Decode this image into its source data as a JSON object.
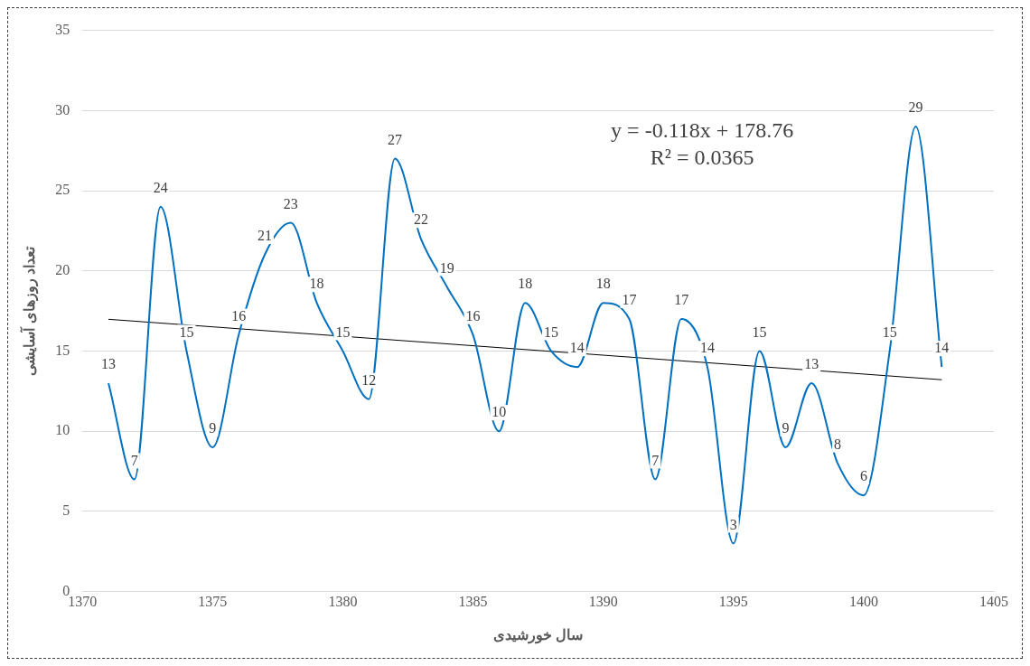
{
  "chart_data": {
    "type": "line",
    "xlabel": "سال خورشیدی",
    "ylabel": "تعداد روزهای آسایشی",
    "x": [
      1371,
      1372,
      1373,
      1374,
      1375,
      1376,
      1377,
      1378,
      1379,
      1380,
      1381,
      1382,
      1383,
      1384,
      1385,
      1386,
      1387,
      1388,
      1389,
      1390,
      1391,
      1392,
      1393,
      1394,
      1395,
      1396,
      1397,
      1398,
      1399,
      1400,
      1401,
      1402,
      1403
    ],
    "series": [
      {
        "type": "line",
        "color": "#0070c0",
        "values": [
          13,
          7,
          24,
          15,
          9,
          16,
          21,
          23,
          18,
          15,
          12,
          27,
          22,
          19,
          16,
          10,
          18,
          15,
          14,
          18,
          17,
          7,
          17,
          14,
          3,
          15,
          9,
          13,
          8,
          6,
          15,
          29,
          14
        ],
        "data_labels": true
      },
      {
        "type": "line",
        "color": "#000000",
        "x": [
          1371,
          1403
        ],
        "values": [
          16.98,
          13.21
        ]
      }
    ],
    "annotations": [
      "y = -0.118x + 178.76",
      "R² = 0.0365"
    ],
    "xlim": [
      1370,
      1405
    ],
    "xticks": [
      1370,
      1375,
      1380,
      1385,
      1390,
      1395,
      1400,
      1405
    ],
    "ylim": [
      0,
      35
    ],
    "yticks": [
      0,
      5,
      10,
      15,
      20,
      25,
      30,
      35
    ],
    "grid": "y",
    "legend": false,
    "marker": "none",
    "line_style": "solid"
  }
}
